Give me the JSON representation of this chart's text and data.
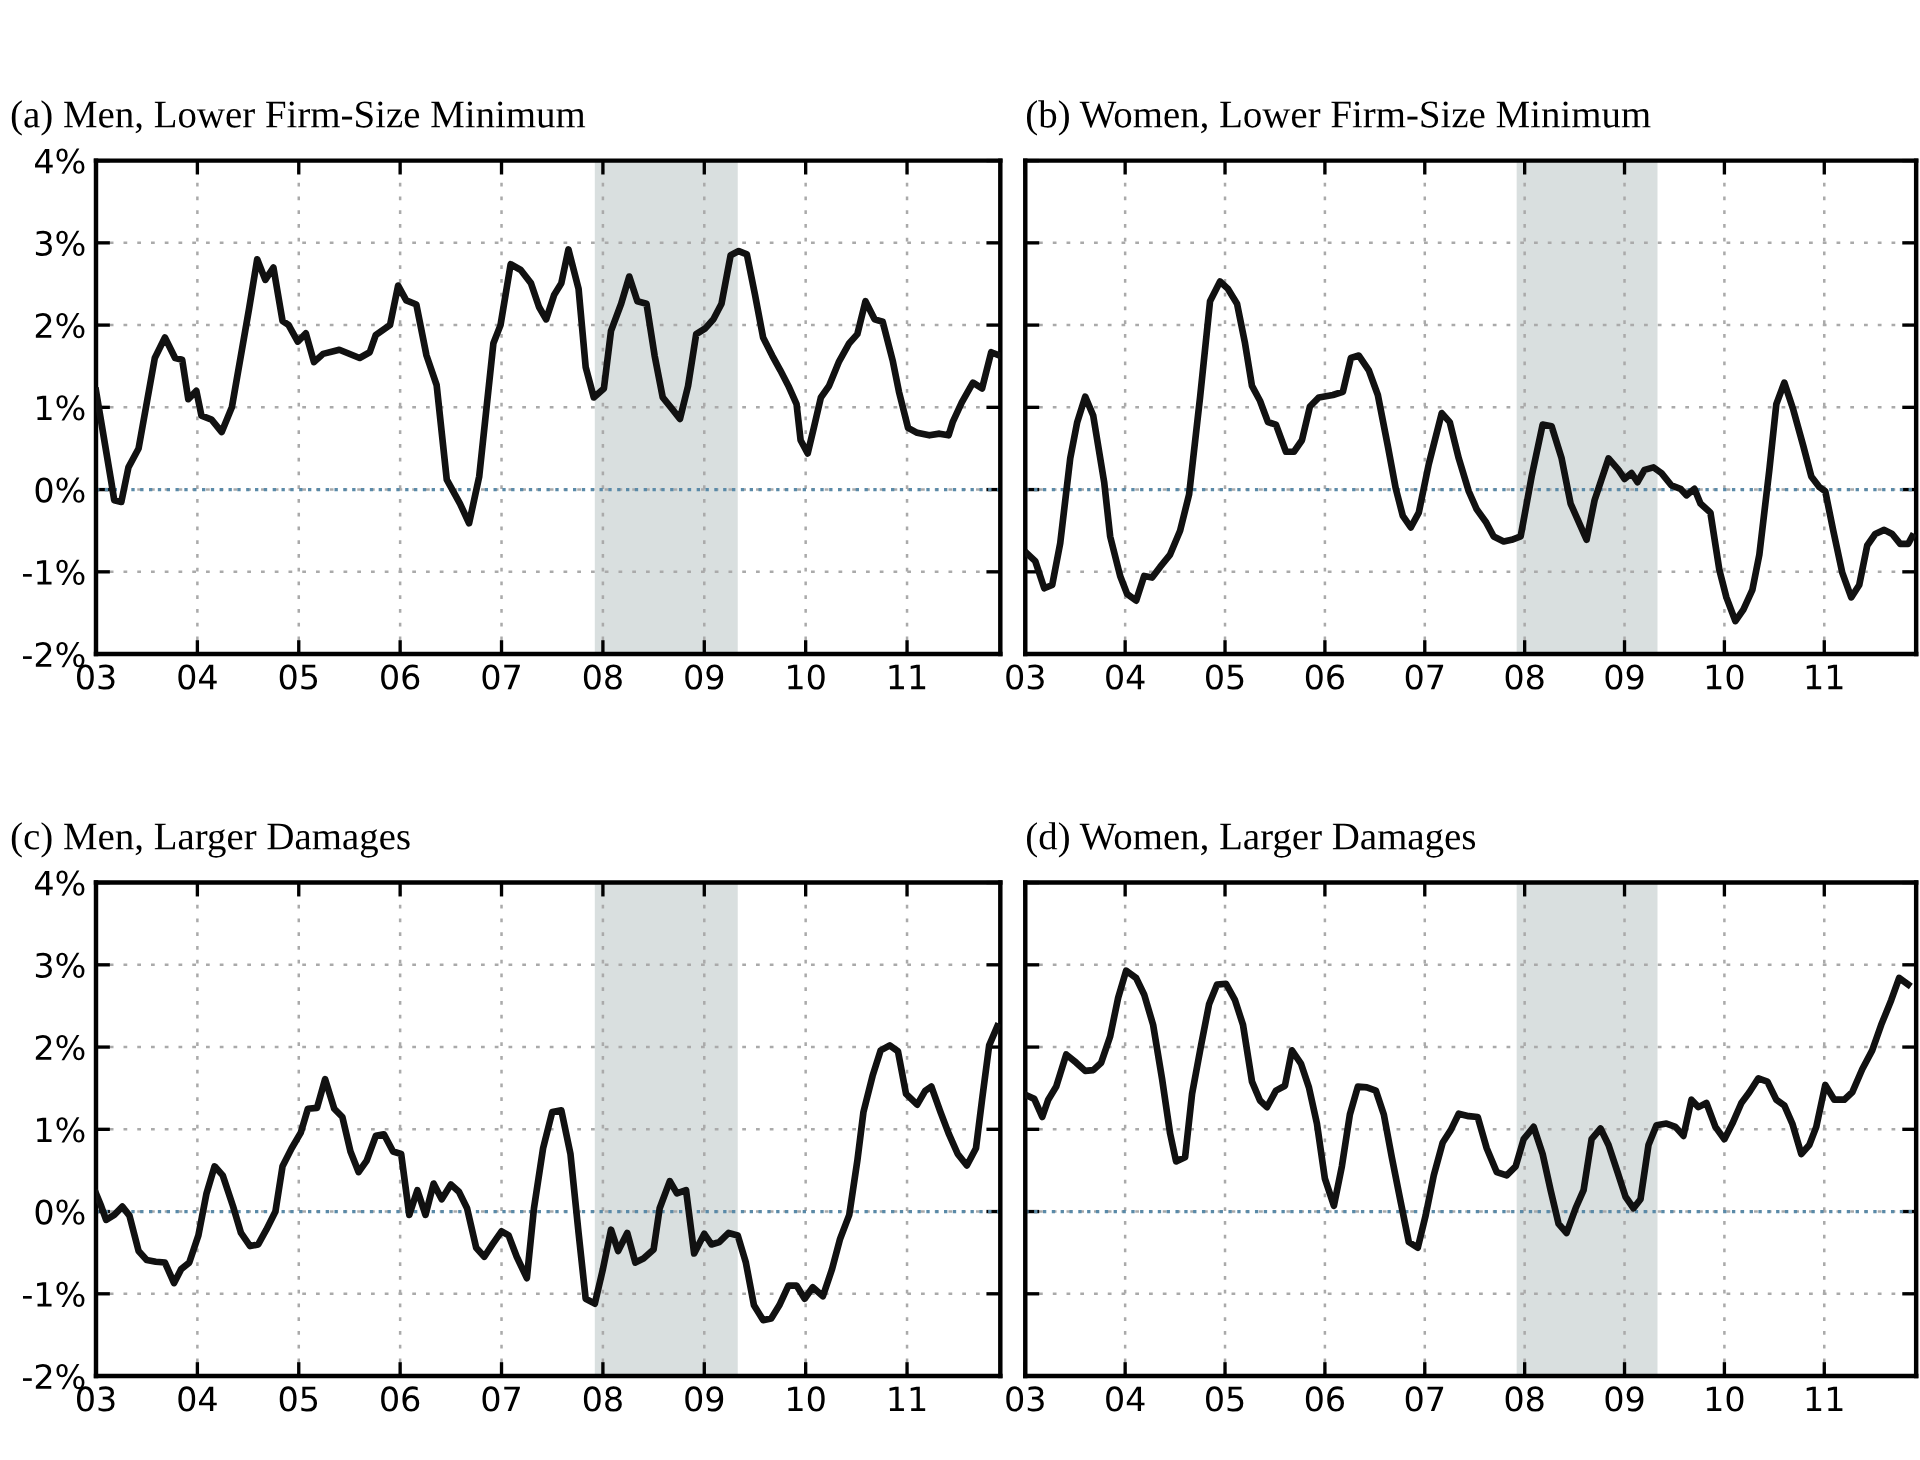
{
  "chart_data": [
    {
      "type": "line",
      "title": "(a) Men, Lower Firm-Size Minimum",
      "xlim": [
        2003,
        2011.92
      ],
      "ylim": [
        -2,
        4
      ],
      "xticks": [
        {
          "value": 2003,
          "label": "03"
        },
        {
          "value": 2004,
          "label": "04"
        },
        {
          "value": 2005,
          "label": "05"
        },
        {
          "value": 2006,
          "label": "06"
        },
        {
          "value": 2007,
          "label": "07"
        },
        {
          "value": 2008,
          "label": "08"
        },
        {
          "value": 2009,
          "label": "09"
        },
        {
          "value": 2010,
          "label": "10"
        },
        {
          "value": 2011,
          "label": "11"
        }
      ],
      "yticks": [
        {
          "value": -2,
          "label": "-2%"
        },
        {
          "value": -1,
          "label": "-1%"
        },
        {
          "value": 0,
          "label": "0%"
        },
        {
          "value": 1,
          "label": "1%"
        },
        {
          "value": 2,
          "label": "2%"
        },
        {
          "value": 3,
          "label": "3%"
        },
        {
          "value": 4,
          "label": "4%"
        }
      ],
      "grid": true,
      "legend": false,
      "ref_lines": [
        {
          "axis": "y",
          "value": 0,
          "color": "#5a8aa8",
          "line_style": "dotted"
        }
      ],
      "bands": [
        {
          "axis": "x",
          "from": 2007.92,
          "to": 2009.33,
          "color": "#d9dfdf"
        }
      ],
      "series": [
        {
          "color": "#111111",
          "x": [
            2003.0,
            2003.15,
            2003.18,
            2003.25,
            2003.32,
            2003.42,
            2003.58,
            2003.68,
            2003.78,
            2003.85,
            2003.91,
            2003.99,
            2004.04,
            2004.14,
            2004.24,
            2004.34,
            2004.51,
            2004.59,
            2004.67,
            2004.75,
            2004.84,
            2004.9,
            2004.99,
            2005.07,
            2005.15,
            2005.24,
            2005.4,
            2005.6,
            2005.7,
            2005.76,
            2005.9,
            2005.98,
            2006.06,
            2006.16,
            2006.26,
            2006.36,
            2006.46,
            2006.59,
            2006.68,
            2006.78,
            2006.92,
            2006.99,
            2007.09,
            2007.19,
            2007.29,
            2007.37,
            2007.44,
            2007.52,
            2007.59,
            2007.66,
            2007.76,
            2007.83,
            2007.91,
            2008.01,
            2008.08,
            2008.18,
            2008.26,
            2008.34,
            2008.43,
            2008.51,
            2008.59,
            2008.67,
            2008.76,
            2008.84,
            2008.92,
            2009.01,
            2009.09,
            2009.17,
            2009.26,
            2009.34,
            2009.42,
            2009.5,
            2009.58,
            2009.67,
            2009.75,
            2009.83,
            2009.91,
            2009.95,
            2010.02,
            2010.08,
            2010.15,
            2010.23,
            2010.33,
            2010.43,
            2010.51,
            2010.59,
            2010.68,
            2010.76,
            2010.86,
            2010.92,
            2011.01,
            2011.1,
            2011.22,
            2011.32,
            2011.41,
            2011.45,
            2011.54,
            2011.65,
            2011.74,
            2011.83,
            2011.91
          ],
          "values": [
            1.2,
            0.1,
            -0.13,
            -0.15,
            0.27,
            0.5,
            1.6,
            1.85,
            1.6,
            1.58,
            1.1,
            1.2,
            0.9,
            0.85,
            0.7,
            1.0,
            2.2,
            2.8,
            2.55,
            2.7,
            2.05,
            2.0,
            1.8,
            1.9,
            1.55,
            1.65,
            1.7,
            1.6,
            1.67,
            1.88,
            2.0,
            2.48,
            2.3,
            2.25,
            1.63,
            1.27,
            0.12,
            -0.17,
            -0.41,
            0.16,
            1.78,
            2.0,
            2.74,
            2.67,
            2.51,
            2.22,
            2.07,
            2.37,
            2.51,
            2.92,
            2.44,
            1.49,
            1.12,
            1.23,
            1.93,
            2.26,
            2.59,
            2.29,
            2.26,
            1.63,
            1.12,
            1.0,
            0.86,
            1.26,
            1.89,
            1.96,
            2.07,
            2.26,
            2.85,
            2.9,
            2.86,
            2.37,
            1.85,
            1.63,
            1.45,
            1.26,
            1.04,
            0.6,
            0.44,
            0.75,
            1.12,
            1.26,
            1.56,
            1.78,
            1.89,
            2.29,
            2.07,
            2.04,
            1.56,
            1.19,
            0.75,
            0.69,
            0.66,
            0.68,
            0.66,
            0.82,
            1.06,
            1.3,
            1.23,
            1.67,
            1.63
          ]
        }
      ]
    },
    {
      "type": "line",
      "title": "(b) Women, Lower Firm-Size Minimum",
      "xlim": [
        2003,
        2011.92
      ],
      "ylim": [
        -2,
        4
      ],
      "tick_labels": "x",
      "xticks": [
        {
          "value": 2003,
          "label": "03"
        },
        {
          "value": 2004,
          "label": "04"
        },
        {
          "value": 2005,
          "label": "05"
        },
        {
          "value": 2006,
          "label": "06"
        },
        {
          "value": 2007,
          "label": "07"
        },
        {
          "value": 2008,
          "label": "08"
        },
        {
          "value": 2009,
          "label": "09"
        },
        {
          "value": 2010,
          "label": "10"
        },
        {
          "value": 2011,
          "label": "11"
        }
      ],
      "yticks": [
        {
          "value": -2,
          "label": null
        },
        {
          "value": -1,
          "label": null
        },
        {
          "value": 0,
          "label": null
        },
        {
          "value": 1,
          "label": null
        },
        {
          "value": 2,
          "label": null
        },
        {
          "value": 3,
          "label": null
        },
        {
          "value": 4,
          "label": null
        }
      ],
      "grid": true,
      "legend": false,
      "ref_lines": [
        {
          "axis": "y",
          "value": 0,
          "color": "#5a8aa8",
          "line_style": "dotted"
        }
      ],
      "bands": [
        {
          "axis": "x",
          "from": 2007.92,
          "to": 2009.33,
          "color": "#d9dfdf"
        }
      ],
      "series": [
        {
          "color": "#111111",
          "x": [
            2003.02,
            2003.1,
            2003.19,
            2003.27,
            2003.35,
            2003.45,
            2003.52,
            2003.6,
            2003.68,
            2003.79,
            2003.85,
            2003.95,
            2004.02,
            2004.11,
            2004.19,
            2004.27,
            2004.35,
            2004.45,
            2004.55,
            2004.64,
            2004.75,
            2004.85,
            2004.95,
            2005.03,
            2005.12,
            2005.2,
            2005.27,
            2005.35,
            2005.43,
            2005.51,
            2005.61,
            2005.69,
            2005.77,
            2005.85,
            2005.94,
            2006.08,
            2006.18,
            2006.26,
            2006.34,
            2006.44,
            2006.53,
            2006.63,
            2006.71,
            2006.78,
            2006.86,
            2006.94,
            2007.04,
            2007.17,
            2007.25,
            2007.34,
            2007.44,
            2007.52,
            2007.61,
            2007.69,
            2007.79,
            2007.87,
            2007.96,
            2008.07,
            2008.18,
            2008.27,
            2008.37,
            2008.46,
            2008.54,
            2008.62,
            2008.7,
            2008.84,
            2008.94,
            2009.0,
            2009.07,
            2009.13,
            2009.2,
            2009.29,
            2009.37,
            2009.47,
            2009.56,
            2009.62,
            2009.7,
            2009.76,
            2009.86,
            2009.95,
            2010.02,
            2010.11,
            2010.19,
            2010.28,
            2010.35,
            2010.45,
            2010.52,
            2010.6,
            2010.69,
            2010.79,
            2010.87,
            2010.95,
            2011.01,
            2011.09,
            2011.18,
            2011.27,
            2011.35,
            2011.43,
            2011.51,
            2011.6,
            2011.68,
            2011.76,
            2011.84,
            2011.88
          ],
          "values": [
            -0.78,
            -0.87,
            -1.2,
            -1.16,
            -0.65,
            0.38,
            0.82,
            1.13,
            0.9,
            0.09,
            -0.57,
            -1.05,
            -1.27,
            -1.35,
            -1.05,
            -1.07,
            -0.94,
            -0.79,
            -0.5,
            -0.06,
            1.12,
            2.29,
            2.53,
            2.44,
            2.26,
            1.78,
            1.26,
            1.08,
            0.82,
            0.79,
            0.46,
            0.46,
            0.6,
            1.01,
            1.12,
            1.15,
            1.19,
            1.6,
            1.63,
            1.45,
            1.15,
            0.53,
            0.01,
            -0.32,
            -0.46,
            -0.28,
            0.31,
            0.93,
            0.82,
            0.38,
            -0.02,
            -0.24,
            -0.39,
            -0.57,
            -0.63,
            -0.61,
            -0.57,
            0.16,
            0.79,
            0.77,
            0.38,
            -0.17,
            -0.39,
            -0.61,
            -0.13,
            0.38,
            0.24,
            0.13,
            0.2,
            0.09,
            0.24,
            0.27,
            0.2,
            0.05,
            0.01,
            -0.07,
            0.01,
            -0.17,
            -0.28,
            -0.98,
            -1.31,
            -1.6,
            -1.46,
            -1.22,
            -0.79,
            0.24,
            1.04,
            1.3,
            0.97,
            0.53,
            0.16,
            0.03,
            -0.02,
            -0.5,
            -1.01,
            -1.31,
            -1.16,
            -0.68,
            -0.54,
            -0.49,
            -0.54,
            -0.66,
            -0.66,
            -0.57
          ]
        }
      ]
    },
    {
      "type": "line",
      "title": "(c) Men, Larger Damages",
      "xlim": [
        2003,
        2011.92
      ],
      "ylim": [
        -2,
        4
      ],
      "xticks": [
        {
          "value": 2003,
          "label": "03"
        },
        {
          "value": 2004,
          "label": "04"
        },
        {
          "value": 2005,
          "label": "05"
        },
        {
          "value": 2006,
          "label": "06"
        },
        {
          "value": 2007,
          "label": "07"
        },
        {
          "value": 2008,
          "label": "08"
        },
        {
          "value": 2009,
          "label": "09"
        },
        {
          "value": 2010,
          "label": "10"
        },
        {
          "value": 2011,
          "label": "11"
        }
      ],
      "yticks": [
        {
          "value": -2,
          "label": "-2%"
        },
        {
          "value": -1,
          "label": "-1%"
        },
        {
          "value": 0,
          "label": "0%"
        },
        {
          "value": 1,
          "label": "1%"
        },
        {
          "value": 2,
          "label": "2%"
        },
        {
          "value": 3,
          "label": "3%"
        },
        {
          "value": 4,
          "label": "4%"
        }
      ],
      "grid": true,
      "legend": false,
      "ref_lines": [
        {
          "axis": "y",
          "value": 0,
          "color": "#5a8aa8",
          "line_style": "dotted"
        }
      ],
      "bands": [
        {
          "axis": "x",
          "from": 2007.92,
          "to": 2009.33,
          "color": "#d9dfdf"
        }
      ],
      "series": [
        {
          "color": "#111111",
          "x": [
            2003.0,
            2003.05,
            2003.1,
            2003.18,
            2003.26,
            2003.33,
            2003.42,
            2003.5,
            2003.59,
            2003.68,
            2003.77,
            2003.84,
            2003.92,
            2004.01,
            2004.09,
            2004.17,
            2004.25,
            2004.35,
            2004.43,
            2004.52,
            2004.6,
            2004.68,
            2004.77,
            2004.84,
            2004.93,
            2005.02,
            2005.09,
            2005.18,
            2005.26,
            2005.35,
            2005.43,
            2005.51,
            2005.59,
            2005.67,
            2005.76,
            2005.84,
            2005.93,
            2006.01,
            2006.09,
            2006.17,
            2006.25,
            2006.33,
            2006.41,
            2006.5,
            2006.58,
            2006.66,
            2006.75,
            2006.83,
            2006.91,
            2007.0,
            2007.07,
            2007.15,
            2007.25,
            2007.32,
            2007.41,
            2007.5,
            2007.59,
            2007.68,
            2007.76,
            2007.83,
            2007.92,
            2008.0,
            2008.08,
            2008.15,
            2008.24,
            2008.32,
            2008.4,
            2008.5,
            2008.56,
            2008.66,
            2008.73,
            2008.82,
            2008.9,
            2009.0,
            2009.07,
            2009.15,
            2009.24,
            2009.33,
            2009.41,
            2009.49,
            2009.58,
            2009.66,
            2009.74,
            2009.83,
            2009.91,
            2009.99,
            2010.07,
            2010.17,
            2010.26,
            2010.34,
            2010.43,
            2010.51,
            2010.57,
            2010.66,
            2010.74,
            2010.83,
            2010.91,
            2010.99,
            2011.1,
            2011.18,
            2011.24,
            2011.33,
            2011.41,
            2011.5,
            2011.59,
            2011.68,
            2011.74,
            2011.81,
            2011.89
          ],
          "values": [
            0.22,
            0.07,
            -0.1,
            -0.04,
            0.06,
            -0.05,
            -0.48,
            -0.59,
            -0.61,
            -0.62,
            -0.87,
            -0.7,
            -0.62,
            -0.29,
            0.22,
            0.55,
            0.44,
            0.07,
            -0.26,
            -0.42,
            -0.4,
            -0.22,
            0.0,
            0.55,
            0.77,
            0.96,
            1.25,
            1.26,
            1.61,
            1.25,
            1.15,
            0.73,
            0.48,
            0.62,
            0.92,
            0.94,
            0.73,
            0.7,
            -0.04,
            0.26,
            -0.04,
            0.34,
            0.15,
            0.33,
            0.24,
            0.04,
            -0.44,
            -0.55,
            -0.4,
            -0.24,
            -0.29,
            -0.55,
            -0.81,
            0.04,
            0.77,
            1.21,
            1.23,
            0.7,
            -0.26,
            -1.06,
            -1.12,
            -0.7,
            -0.22,
            -0.48,
            -0.26,
            -0.62,
            -0.57,
            -0.46,
            0.04,
            0.37,
            0.22,
            0.26,
            -0.51,
            -0.27,
            -0.4,
            -0.37,
            -0.26,
            -0.29,
            -0.62,
            -1.14,
            -1.32,
            -1.3,
            -1.14,
            -0.9,
            -0.9,
            -1.06,
            -0.92,
            -1.03,
            -0.7,
            -0.33,
            -0.04,
            0.62,
            1.21,
            1.65,
            1.96,
            2.02,
            1.95,
            1.43,
            1.3,
            1.47,
            1.52,
            1.21,
            0.95,
            0.7,
            0.56,
            0.77,
            1.36,
            2.02,
            2.25
          ]
        }
      ]
    },
    {
      "type": "line",
      "title": "(d) Women, Larger Damages",
      "xlim": [
        2003,
        2011.92
      ],
      "ylim": [
        -2,
        4
      ],
      "tick_labels": "x",
      "xticks": [
        {
          "value": 2003,
          "label": "03"
        },
        {
          "value": 2004,
          "label": "04"
        },
        {
          "value": 2005,
          "label": "05"
        },
        {
          "value": 2006,
          "label": "06"
        },
        {
          "value": 2007,
          "label": "07"
        },
        {
          "value": 2008,
          "label": "08"
        },
        {
          "value": 2009,
          "label": "09"
        },
        {
          "value": 2010,
          "label": "10"
        },
        {
          "value": 2011,
          "label": "11"
        }
      ],
      "yticks": [
        {
          "value": -2,
          "label": null
        },
        {
          "value": -1,
          "label": null
        },
        {
          "value": 0,
          "label": null
        },
        {
          "value": 1,
          "label": null
        },
        {
          "value": 2,
          "label": null
        },
        {
          "value": 3,
          "label": null
        },
        {
          "value": 4,
          "label": null
        }
      ],
      "grid": true,
      "legend": false,
      "ref_lines": [
        {
          "axis": "y",
          "value": 0,
          "color": "#5a8aa8",
          "line_style": "dotted"
        }
      ],
      "bands": [
        {
          "axis": "x",
          "from": 2007.92,
          "to": 2009.33,
          "color": "#d9dfdf"
        }
      ],
      "series": [
        {
          "color": "#111111",
          "x": [
            2003.0,
            2003.09,
            2003.17,
            2003.23,
            2003.31,
            2003.41,
            2003.51,
            2003.6,
            2003.68,
            2003.76,
            2003.85,
            2003.93,
            2004.01,
            2004.11,
            2004.19,
            2004.28,
            2004.37,
            2004.45,
            2004.51,
            2004.6,
            2004.67,
            2004.76,
            2004.84,
            2004.92,
            2005.01,
            2005.1,
            2005.18,
            2005.27,
            2005.35,
            2005.42,
            2005.51,
            2005.6,
            2005.67,
            2005.76,
            2005.84,
            2005.92,
            2006.0,
            2006.09,
            2006.17,
            2006.25,
            2006.33,
            2006.42,
            2006.51,
            2006.59,
            2006.67,
            2006.76,
            2006.84,
            2006.93,
            2007.01,
            2007.09,
            2007.18,
            2007.26,
            2007.34,
            2007.44,
            2007.53,
            2007.62,
            2007.72,
            2007.82,
            2007.91,
            2007.99,
            2008.09,
            2008.18,
            2008.26,
            2008.34,
            2008.42,
            2008.51,
            2008.59,
            2008.67,
            2008.76,
            2008.84,
            2008.93,
            2009.01,
            2009.09,
            2009.16,
            2009.24,
            2009.32,
            2009.42,
            2009.51,
            2009.59,
            2009.67,
            2009.74,
            2009.82,
            2009.91,
            2010.0,
            2010.08,
            2010.17,
            2010.25,
            2010.34,
            2010.43,
            2010.52,
            2010.6,
            2010.68,
            2010.77,
            2010.85,
            2010.92,
            2011.01,
            2011.1,
            2011.2,
            2011.28,
            2011.38,
            2011.48,
            2011.57,
            2011.67,
            2011.75,
            2011.84
          ],
          "values": [
            1.42,
            1.37,
            1.15,
            1.36,
            1.52,
            1.91,
            1.81,
            1.71,
            1.72,
            1.81,
            2.13,
            2.6,
            2.93,
            2.84,
            2.64,
            2.27,
            1.61,
            0.95,
            0.61,
            0.66,
            1.43,
            2.02,
            2.52,
            2.76,
            2.77,
            2.57,
            2.27,
            1.58,
            1.35,
            1.27,
            1.47,
            1.53,
            1.96,
            1.8,
            1.51,
            1.07,
            0.4,
            0.07,
            0.55,
            1.18,
            1.52,
            1.51,
            1.47,
            1.18,
            0.66,
            0.11,
            -0.37,
            -0.44,
            -0.04,
            0.44,
            0.84,
            0.99,
            1.19,
            1.16,
            1.15,
            0.77,
            0.48,
            0.44,
            0.55,
            0.88,
            1.03,
            0.7,
            0.26,
            -0.15,
            -0.26,
            0.04,
            0.26,
            0.88,
            1.01,
            0.81,
            0.48,
            0.18,
            0.04,
            0.15,
            0.81,
            1.05,
            1.07,
            1.03,
            0.92,
            1.36,
            1.27,
            1.32,
            1.03,
            0.88,
            1.07,
            1.32,
            1.45,
            1.62,
            1.58,
            1.36,
            1.29,
            1.07,
            0.7,
            0.81,
            1.03,
            1.54,
            1.36,
            1.36,
            1.45,
            1.73,
            1.96,
            2.27,
            2.57,
            2.84,
            2.76
          ]
        }
      ]
    }
  ]
}
